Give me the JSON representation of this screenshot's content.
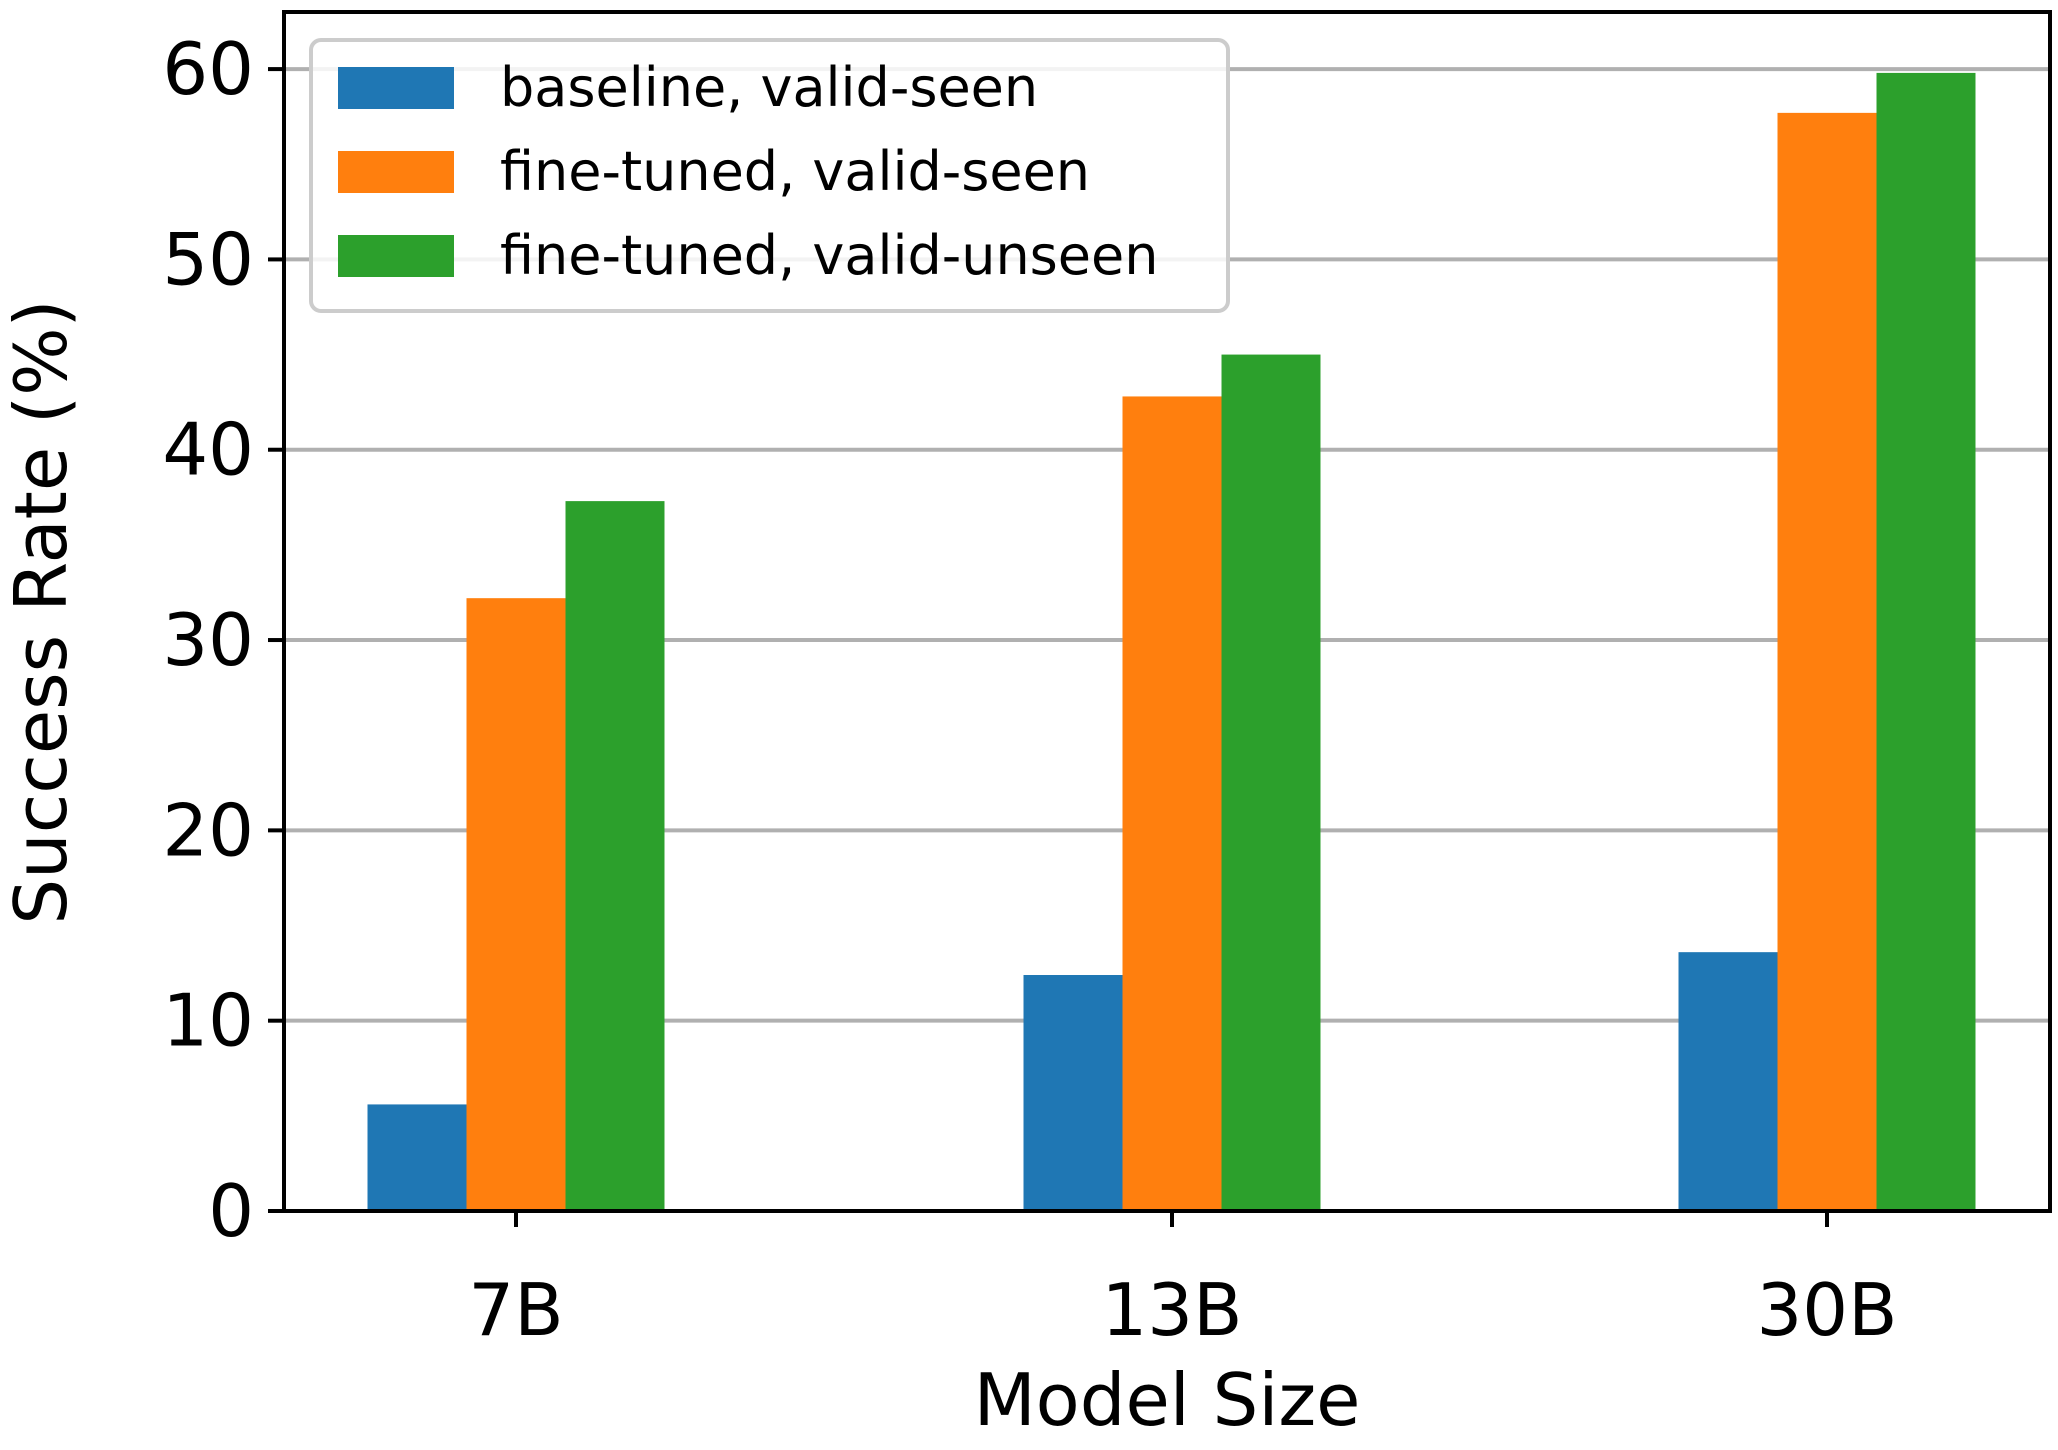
{
  "chart_data": {
    "type": "bar",
    "title": "",
    "xlabel": "Model Size",
    "ylabel": "Success Rate (%)",
    "categories": [
      "7B",
      "13B",
      "30B"
    ],
    "ylim": [
      0,
      63
    ],
    "yticks": [
      0,
      10,
      20,
      30,
      40,
      50,
      60
    ],
    "grid": "horizontal",
    "legend_position": "top-left",
    "series": [
      {
        "name": "baseline, valid-seen",
        "color": "#1f77b4",
        "values": [
          5.6,
          12.4,
          13.6
        ]
      },
      {
        "name": "fine-tuned, valid-seen",
        "color": "#ff7f0e",
        "values": [
          32.2,
          42.8,
          57.7
        ]
      },
      {
        "name": "fine-tuned, valid-unseen",
        "color": "#2ca02c",
        "values": [
          37.3,
          45.0,
          59.8
        ]
      }
    ]
  }
}
